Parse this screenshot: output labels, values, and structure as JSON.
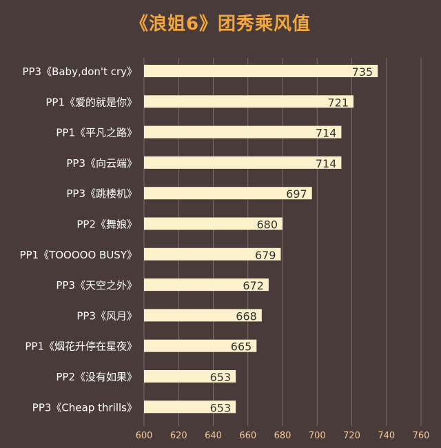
{
  "chart_data": {
    "type": "bar",
    "orientation": "horizontal",
    "title": "《浪姐6》团秀乘风值",
    "categories": [
      "PP3《Baby,don't cry》",
      "PP1《爱的就是你》",
      "PP1《平凡之路》",
      "PP3《向云端》",
      "PP3《跳楼机》",
      "PP2《舞娘》",
      "PP1《TOOOOO BUSY》",
      "PP3《天空之外》",
      "PP3《风月》",
      "PP1《烟花升停在星夜》",
      "PP2《没有如果》",
      "PP3《Cheap thrills》"
    ],
    "values": [
      735,
      721,
      714,
      714,
      697,
      680,
      679,
      672,
      668,
      665,
      653,
      653
    ],
    "value_labels": [
      "735",
      "721",
      "714",
      "714",
      "697",
      "680",
      "679",
      "672",
      "668",
      "665",
      "653",
      "653"
    ],
    "xlim": [
      600,
      760
    ],
    "xticks": [
      "600",
      "620",
      "640",
      "660",
      "680",
      "700",
      "720",
      "740",
      "760"
    ],
    "grid": "vertical",
    "colors": {
      "background": "#4a3b3b",
      "bar": "#fdf1cc",
      "title": "#f2a640",
      "category_label": "#ffffff",
      "value_label": "#333333",
      "tick_label": "#f0c89a",
      "grid": "#7a6a6a"
    }
  }
}
